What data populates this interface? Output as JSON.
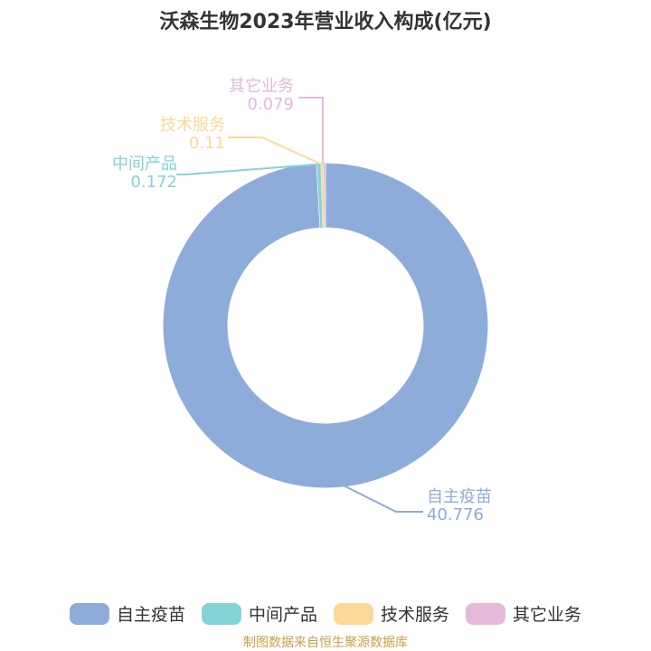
{
  "chart_data": {
    "type": "pie",
    "title": "沃森生物2023年营业收入构成(亿元)",
    "categories": [
      "自主疫苗",
      "中间产品",
      "技术服务",
      "其它业务"
    ],
    "values": [
      40.776,
      0.172,
      0.11,
      0.079
    ],
    "value_labels": [
      "40.776",
      "0.172",
      "0.11",
      "0.079"
    ],
    "colors": [
      "#8eacd9",
      "#84d3d6",
      "#fcd899",
      "#e5b9d8"
    ],
    "donut": true,
    "legend_position": "bottom"
  },
  "source": "制图数据来自恒生聚源数据库"
}
